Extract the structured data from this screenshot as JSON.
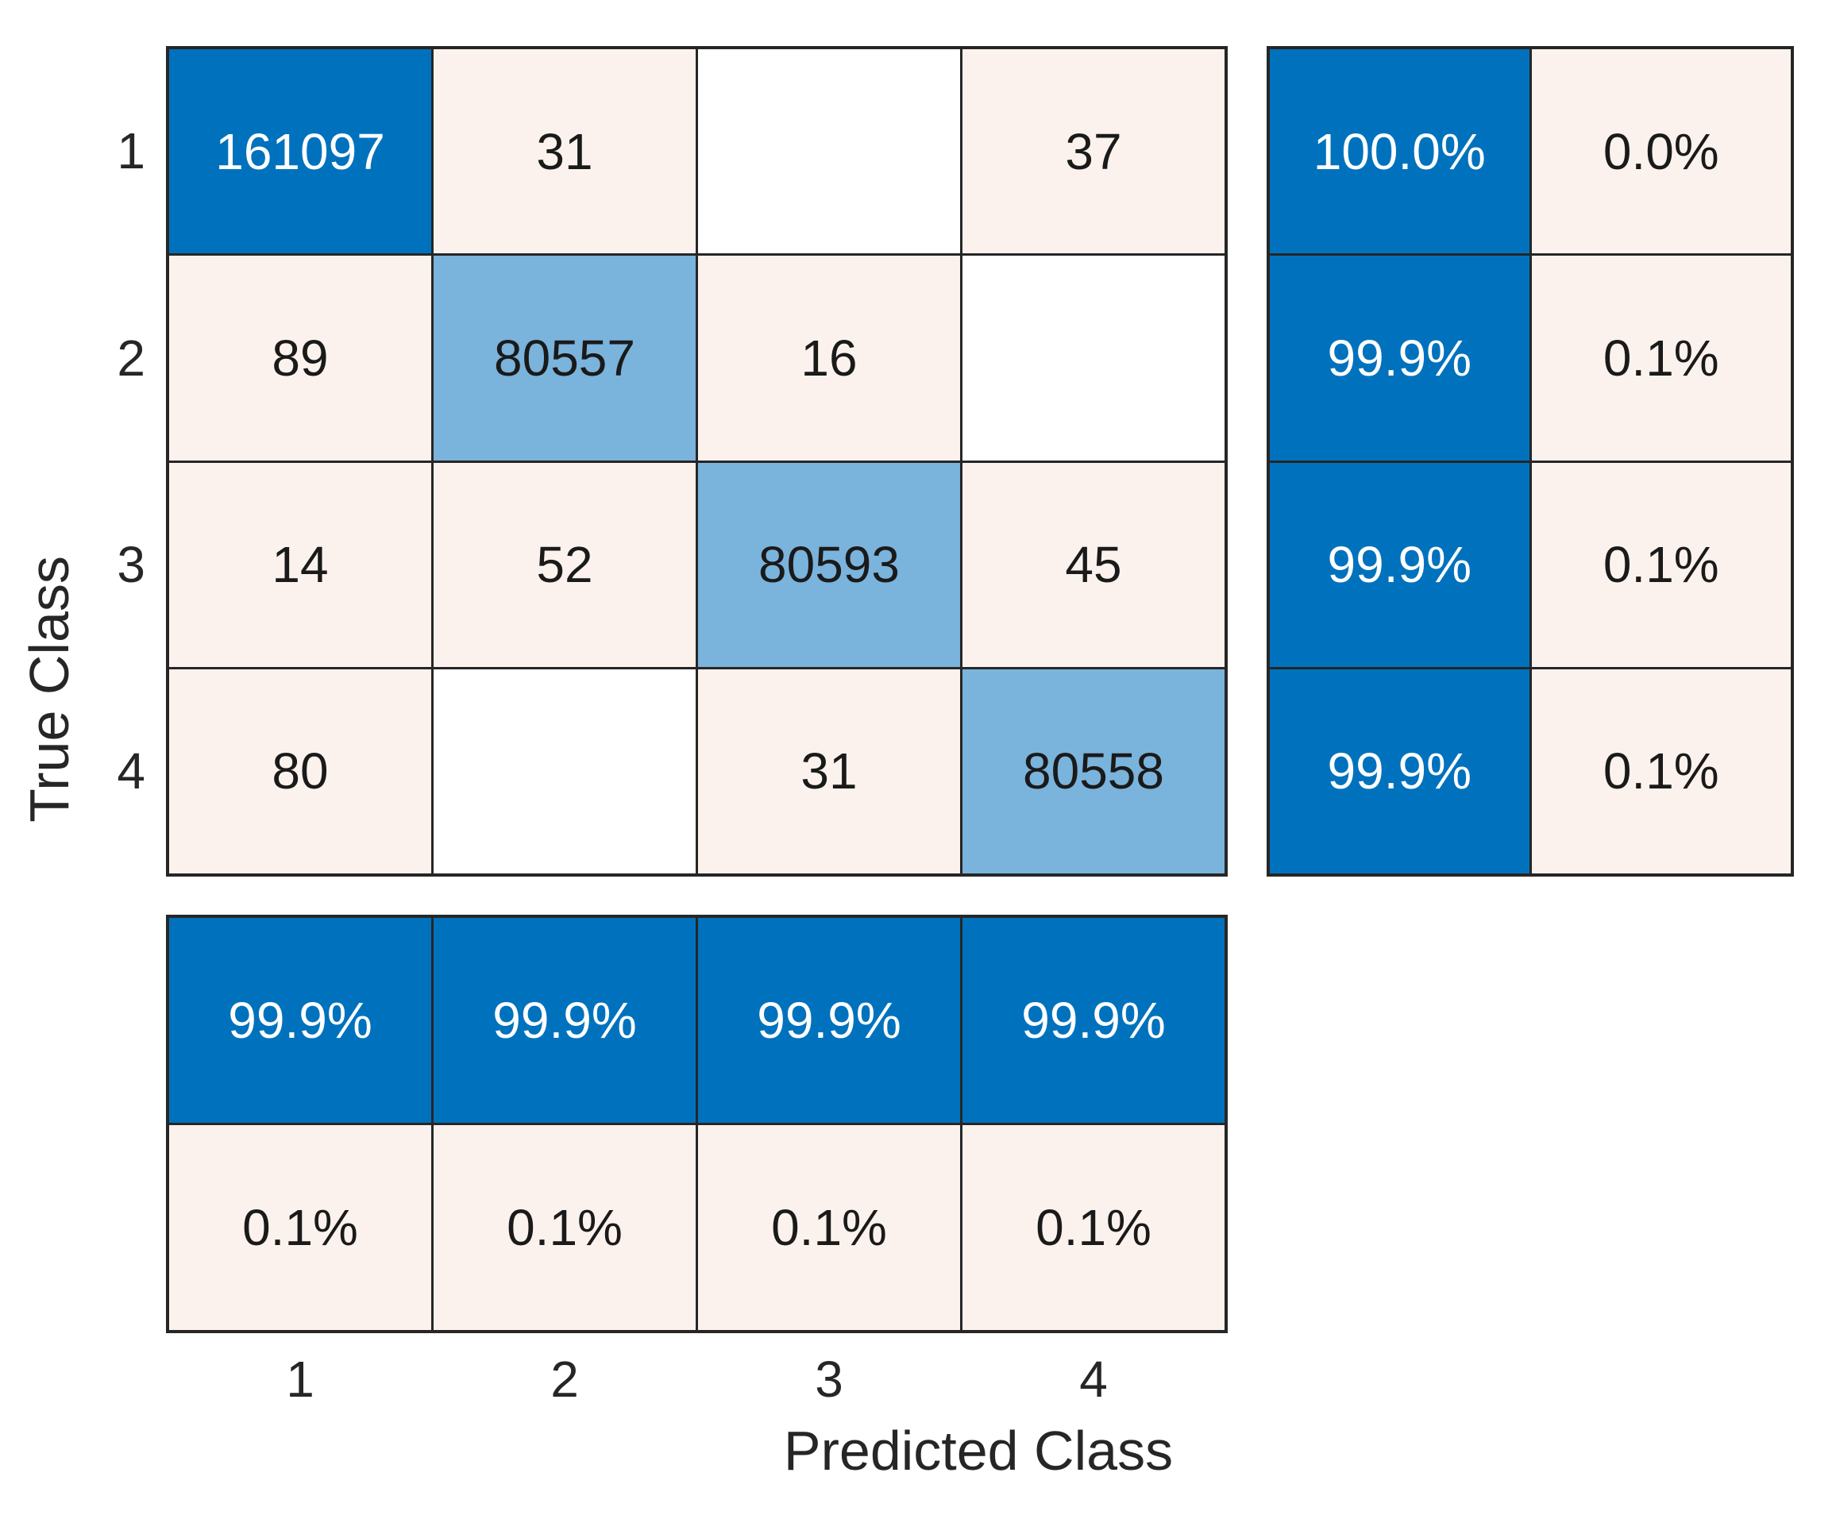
{
  "chart_data": {
    "type": "heatmap",
    "subtype": "confusion-matrix",
    "title": "",
    "xlabel": "Predicted Class",
    "ylabel": "True Class",
    "classes": [
      "1",
      "2",
      "3",
      "4"
    ],
    "matrix_values": [
      [
        161097,
        31,
        0,
        37
      ],
      [
        89,
        80557,
        16,
        0
      ],
      [
        14,
        52,
        80593,
        45
      ],
      [
        80,
        0,
        31,
        80558
      ]
    ],
    "row_summary_values": [
      [
        "100.0%",
        "0.0%"
      ],
      [
        "99.9%",
        "0.1%"
      ],
      [
        "99.9%",
        "0.1%"
      ],
      [
        "99.9%",
        "0.1%"
      ]
    ],
    "col_summary_values": [
      [
        "99.9%",
        "99.9%",
        "99.9%",
        "99.9%"
      ],
      [
        "0.1%",
        "0.1%",
        "0.1%",
        "0.1%"
      ]
    ],
    "legend_position": "none",
    "grid": "on",
    "palette": {
      "diagonal_strong": "#0072BD",
      "diagonal_light": "#7AB3DC",
      "off_diagonal": "#FCF2ED",
      "empty": "#FFFFFF",
      "grid_line": "#262626",
      "text_dark": "#1A1A1A",
      "text_light": "#FFFFFF"
    },
    "main_matrix_cells": [
      [
        {
          "label": "161097",
          "bg": "diagonal_strong",
          "fg": "light"
        },
        {
          "label": "31",
          "bg": "off_diagonal",
          "fg": "dark"
        },
        {
          "label": "",
          "bg": "empty",
          "fg": "dark"
        },
        {
          "label": "37",
          "bg": "off_diagonal",
          "fg": "dark"
        }
      ],
      [
        {
          "label": "89",
          "bg": "off_diagonal",
          "fg": "dark"
        },
        {
          "label": "80557",
          "bg": "diagonal_light",
          "fg": "dark"
        },
        {
          "label": "16",
          "bg": "off_diagonal",
          "fg": "dark"
        },
        {
          "label": "",
          "bg": "empty",
          "fg": "dark"
        }
      ],
      [
        {
          "label": "14",
          "bg": "off_diagonal",
          "fg": "dark"
        },
        {
          "label": "52",
          "bg": "off_diagonal",
          "fg": "dark"
        },
        {
          "label": "80593",
          "bg": "diagonal_light",
          "fg": "dark"
        },
        {
          "label": "45",
          "bg": "off_diagonal",
          "fg": "dark"
        }
      ],
      [
        {
          "label": "80",
          "bg": "off_diagonal",
          "fg": "dark"
        },
        {
          "label": "",
          "bg": "empty",
          "fg": "dark"
        },
        {
          "label": "31",
          "bg": "off_diagonal",
          "fg": "dark"
        },
        {
          "label": "80558",
          "bg": "diagonal_light",
          "fg": "dark"
        }
      ]
    ],
    "row_summary_cells": [
      [
        {
          "label": "100.0%",
          "bg": "diagonal_strong",
          "fg": "light"
        },
        {
          "label": "0.0%",
          "bg": "off_diagonal",
          "fg": "dark"
        }
      ],
      [
        {
          "label": "99.9%",
          "bg": "diagonal_strong",
          "fg": "light"
        },
        {
          "label": "0.1%",
          "bg": "off_diagonal",
          "fg": "dark"
        }
      ],
      [
        {
          "label": "99.9%",
          "bg": "diagonal_strong",
          "fg": "light"
        },
        {
          "label": "0.1%",
          "bg": "off_diagonal",
          "fg": "dark"
        }
      ],
      [
        {
          "label": "99.9%",
          "bg": "diagonal_strong",
          "fg": "light"
        },
        {
          "label": "0.1%",
          "bg": "off_diagonal",
          "fg": "dark"
        }
      ]
    ],
    "col_summary_cells": [
      [
        {
          "label": "99.9%",
          "bg": "diagonal_strong",
          "fg": "light"
        },
        {
          "label": "99.9%",
          "bg": "diagonal_strong",
          "fg": "light"
        },
        {
          "label": "99.9%",
          "bg": "diagonal_strong",
          "fg": "light"
        },
        {
          "label": "99.9%",
          "bg": "diagonal_strong",
          "fg": "light"
        }
      ],
      [
        {
          "label": "0.1%",
          "bg": "off_diagonal",
          "fg": "dark"
        },
        {
          "label": "0.1%",
          "bg": "off_diagonal",
          "fg": "dark"
        },
        {
          "label": "0.1%",
          "bg": "off_diagonal",
          "fg": "dark"
        },
        {
          "label": "0.1%",
          "bg": "off_diagonal",
          "fg": "dark"
        }
      ]
    ]
  }
}
